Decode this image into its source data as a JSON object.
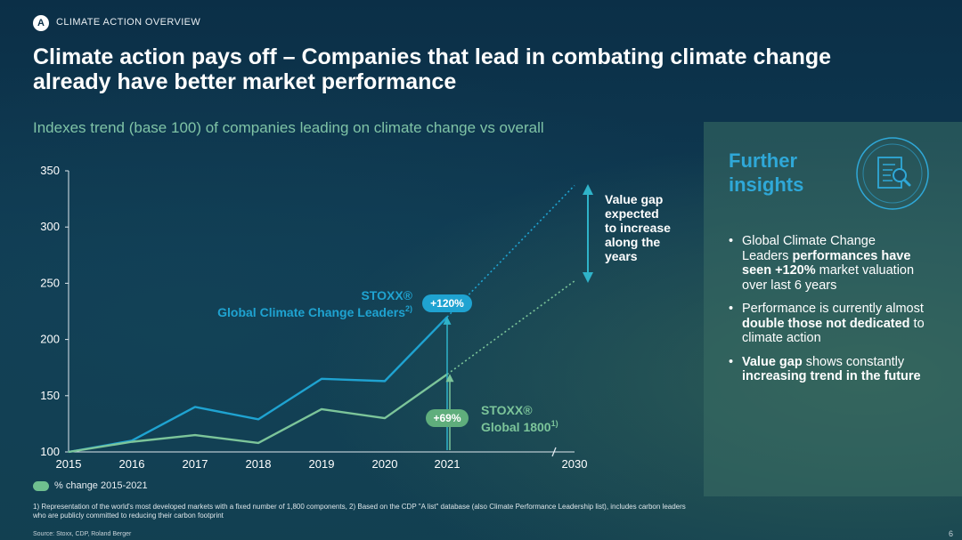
{
  "header": {
    "badge": "A",
    "section_label": "CLIMATE ACTION OVERVIEW",
    "title": "Climate action pays off – Companies that lead in combating climate change already have better market performance",
    "subtitle": "Indexes trend (base 100) of companies leading on climate change vs overall"
  },
  "chart_data": {
    "type": "line",
    "x": [
      2015,
      2016,
      2017,
      2018,
      2019,
      2020,
      2021
    ],
    "x_ticks": [
      "2015",
      "2016",
      "2017",
      "2018",
      "2019",
      "2020",
      "2021",
      "2030"
    ],
    "y_ticks": [
      "100",
      "150",
      "200",
      "250",
      "300",
      "350"
    ],
    "ylim": [
      100,
      350
    ],
    "series": [
      {
        "name": "STOXX® Global Climate Change Leaders",
        "label_line1": "STOXX®",
        "label_line2": "Global Climate Change Leaders",
        "label_sup": "2)",
        "color": "#1fa3d1",
        "values": [
          100,
          110,
          140,
          129,
          165,
          163,
          220
        ],
        "projection_2030": 337,
        "change_label": "+120%"
      },
      {
        "name": "STOXX® Global 1800",
        "label_line1": "STOXX®",
        "label_line2": "Global 1800",
        "label_sup": "1)",
        "color": "#7cc59a",
        "values": [
          100,
          109,
          115,
          108,
          138,
          130,
          169
        ],
        "projection_2030": 252,
        "change_label": "+69%"
      }
    ],
    "annotation": "Value gap expected to increase along the years",
    "annotation_lines": [
      "Value gap",
      "expected",
      "to increase",
      "along the",
      "years"
    ],
    "legend": "% change 2015-2021"
  },
  "insights": {
    "title_line1": "Further",
    "title_line2": "insights",
    "icon": "document-search-icon",
    "b1_pre": "Global Climate Change Leaders ",
    "b1_bold": "performances have seen +120%",
    "b1_post": " market valuation over last 6 years",
    "b2_pre": "Performance is currently almost ",
    "b2_bold": "double those not dedicated",
    "b2_post": " to climate action",
    "b3_bold1": "Value gap",
    "b3_mid": " shows constantly ",
    "b3_bold2": "increasing trend in the future"
  },
  "footer": {
    "footnote": "1) Representation of the world's most developed markets with a fixed number of 1,800 components, 2) Based on the CDP \"A list\" database (also Climate Performance Leadership list), includes carbon leaders who are publicly committed to reducing their carbon footprint",
    "source": "Source: Stoxx, CDP, Roland Berger",
    "page": "6"
  }
}
